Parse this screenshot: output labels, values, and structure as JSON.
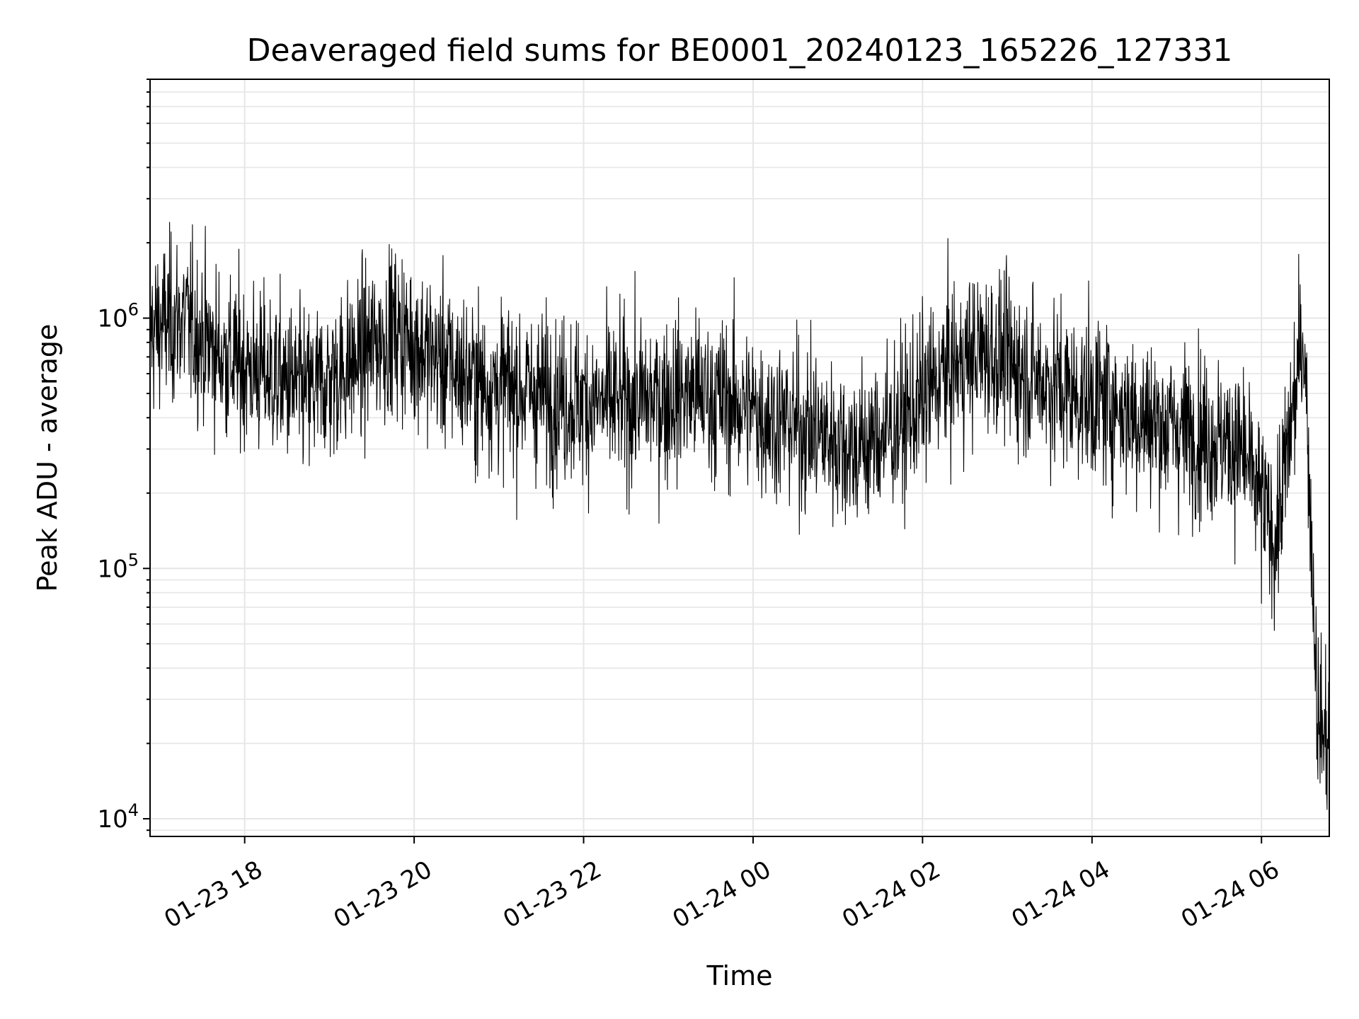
{
  "chart_data": {
    "type": "line",
    "title": "Deaveraged field sums for BE0001_20240123_165226_127331",
    "xlabel": "Time",
    "ylabel": "Peak ADU - average",
    "yscale": "log",
    "x_range": [
      "2024-01-23 16:53",
      "2024-01-24 06:48"
    ],
    "ylim": [
      8500,
      9000000
    ],
    "x_ticks": [
      "01-23 18",
      "01-23 20",
      "01-23 22",
      "01-24 00",
      "01-24 02",
      "01-24 04",
      "01-24 06"
    ],
    "x_tick_times": [
      "2024-01-23 18:00",
      "2024-01-23 20:00",
      "2024-01-23 22:00",
      "2024-01-24 00:00",
      "2024-01-24 02:00",
      "2024-01-24 04:00",
      "2024-01-24 06:00"
    ],
    "y_ticks": [
      {
        "value": 10000,
        "base": "10",
        "exp": "4"
      },
      {
        "value": 100000,
        "base": "10",
        "exp": "5"
      },
      {
        "value": 1000000,
        "base": "10",
        "exp": "6"
      }
    ],
    "grid": true,
    "line_color": "#000000",
    "series": [
      {
        "x": [
          "2024-01-23 16:53",
          "2024-01-23 17:15",
          "2024-01-23 17:45",
          "2024-01-23 18:15",
          "2024-01-23 18:45",
          "2024-01-23 19:15",
          "2024-01-23 19:45",
          "2024-01-23 20:15",
          "2024-01-23 20:45",
          "2024-01-23 21:15",
          "2024-01-23 21:45",
          "2024-01-23 22:15",
          "2024-01-23 22:45",
          "2024-01-23 23:15",
          "2024-01-23 23:45",
          "2024-01-24 00:15",
          "2024-01-24 00:45",
          "2024-01-24 01:15",
          "2024-01-24 01:45",
          "2024-01-24 02:15",
          "2024-01-24 02:45",
          "2024-01-24 03:15",
          "2024-01-24 03:45",
          "2024-01-24 04:15",
          "2024-01-24 04:45",
          "2024-01-24 05:15",
          "2024-01-24 05:45",
          "2024-01-24 06:10",
          "2024-01-24 06:30",
          "2024-01-24 06:40",
          "2024-01-24 06:48"
        ],
        "y": [
          900000,
          1000000,
          700000,
          600000,
          500000,
          650000,
          900000,
          700000,
          550000,
          520000,
          480000,
          450000,
          470000,
          500000,
          460000,
          400000,
          350000,
          300000,
          380000,
          600000,
          750000,
          600000,
          500000,
          450000,
          380000,
          350000,
          300000,
          130000,
          900000,
          25000,
          20000
        ]
      }
    ]
  }
}
